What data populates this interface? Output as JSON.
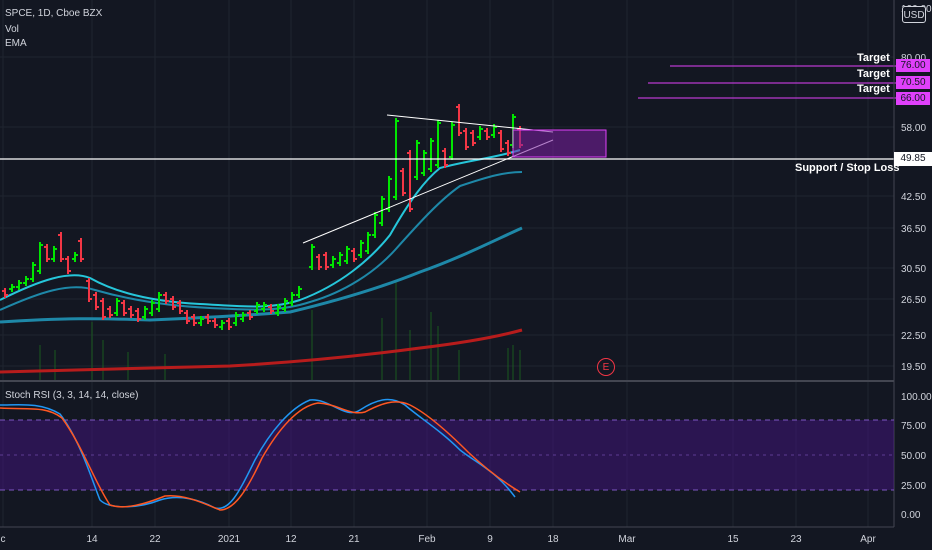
{
  "legend": {
    "symbol": "SPCE, 1D, Cboe BZX",
    "vol": "Vol",
    "ema": "EMA"
  },
  "currency": "USD",
  "price_axis": [
    "100.00",
    "80.00",
    "58.00",
    "42.50",
    "36.50",
    "30.50",
    "26.50",
    "22.50",
    "19.50"
  ],
  "targets": [
    {
      "label": "Target",
      "price": "76.00"
    },
    {
      "label": "Target",
      "price": "70.50"
    },
    {
      "label": "Target",
      "price": "66.00"
    }
  ],
  "support": {
    "label": "Support / Stop Loss",
    "price": "49.85"
  },
  "earnings_marker": "E",
  "time_axis": [
    "c",
    "14",
    "22",
    "2021",
    "12",
    "21",
    "Feb",
    "9",
    "18",
    "Mar",
    "15",
    "23",
    "Apr"
  ],
  "rsi": {
    "title": "Stoch RSI (3, 3, 14, 14, close)",
    "axis": [
      "100.00",
      "75.00",
      "50.00",
      "25.00",
      "0.00"
    ]
  },
  "colors": {
    "background": "#131722",
    "up": "#00e600",
    "down": "#f23645",
    "target": "#e040fb",
    "ema_fast": "#26c6da",
    "ema_mid": "#1e88a8",
    "ema_long": "#b71c1c",
    "rsi_k": "#2196f3",
    "rsi_d": "#ff5722",
    "rsi_band": "#4a148c"
  }
}
